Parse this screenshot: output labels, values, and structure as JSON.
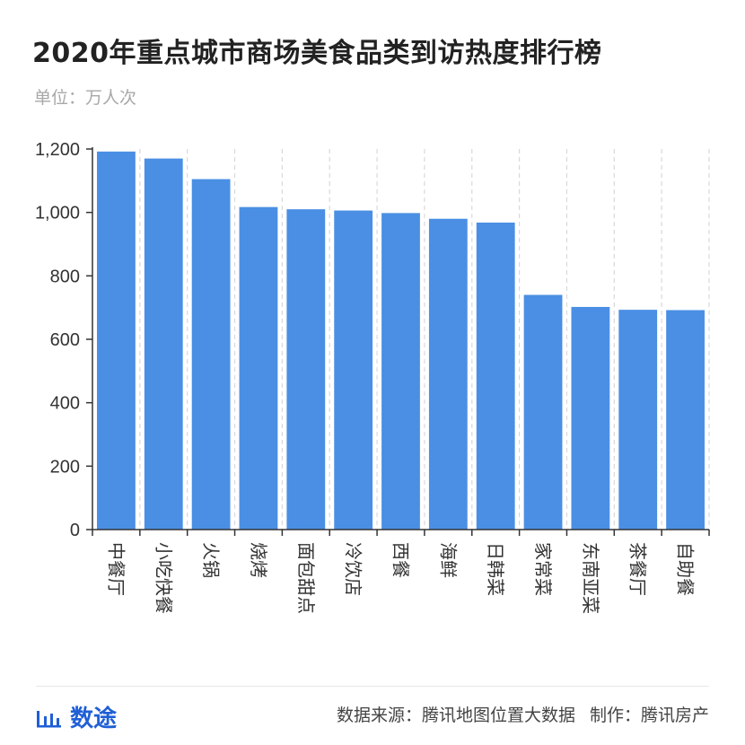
{
  "header": {
    "title": "2020年重点城市商场美食品类到访热度排行榜",
    "subtitle": "单位：万人次"
  },
  "chart_data": {
    "type": "bar",
    "title": "2020年重点城市商场美食品类到访热度排行榜",
    "unit": "万人次",
    "categories": [
      "中餐厅",
      "小吃快餐",
      "火锅",
      "烧烤",
      "面包甜点",
      "冷饮店",
      "西餐",
      "海鲜",
      "日韩菜",
      "家常菜",
      "东南亚菜",
      "茶餐厅",
      "自助餐"
    ],
    "values": [
      1192,
      1170,
      1105,
      1017,
      1010,
      1006,
      998,
      980,
      968,
      740,
      702,
      693,
      692
    ],
    "ylim": [
      0,
      1200
    ],
    "yticks": [
      0,
      200,
      400,
      600,
      800,
      1000,
      1200
    ],
    "ytick_labels": [
      "0",
      "200",
      "400",
      "600",
      "800",
      "1,000",
      "1,200"
    ],
    "grid": "vertical-dashed",
    "bar_color": "#4a8fe4"
  },
  "footer": {
    "logo_text": "数途",
    "source": "数据来源：腾讯地图位置大数据",
    "credit": "制作：腾讯房产"
  },
  "colors": {
    "brand": "#1f5fd6",
    "bar": "#4a8fe4",
    "grid": "#d9d9d9",
    "axis": "#333333"
  }
}
